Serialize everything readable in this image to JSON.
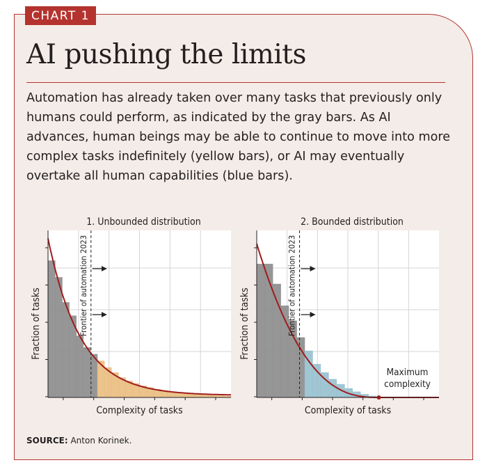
{
  "badge": "CHART 1",
  "title": "AI pushing the limits",
  "description": "Automation has already taken over many tasks that previously only humans could perform, as indicated by the gray bars. As AI advances, human beings may be able to continue to move into more complex tasks indefinitely (yellow bars), or AI may eventually overtake all human capabilities (blue bars).",
  "source_label": "SOURCE:",
  "source_text": "Anton Korinek.",
  "colors": {
    "accent": "#b5332e",
    "automated": "#8d8d8d",
    "unbounded": "#e8b877",
    "bounded": "#8fbccb",
    "curve": "#a01c1c",
    "background": "#f4ece8"
  },
  "chart_data": [
    {
      "type": "bar",
      "title": "1. Unbounded distribution",
      "xlabel": "Complexity of tasks",
      "ylabel": "Fraction of tasks",
      "frontier_label": "Frontier of automation 2023",
      "frontier_x": 0.235,
      "xlim": [
        0,
        1
      ],
      "ylim": [
        0,
        1
      ],
      "grid": true,
      "bars": [
        0.82,
        0.72,
        0.57,
        0.49,
        0.37,
        0.3,
        0.26,
        0.22,
        0.18,
        0.15,
        0.12,
        0.1,
        0.085,
        0.07,
        0.06,
        0.05,
        0.042,
        0.035,
        0.03,
        0.025,
        0.021,
        0.018,
        0.015,
        0.013,
        0.011,
        0.009
      ],
      "curve": "exponential decay, unbounded tail",
      "annotation": ""
    },
    {
      "type": "bar",
      "title": "2. Bounded distribution",
      "xlabel": "Complexity of tasks",
      "ylabel": "Fraction of tasks",
      "frontier_label": "Frontier of automation 2023",
      "frontier_x": 0.235,
      "xlim": [
        0,
        1
      ],
      "ylim": [
        0,
        1
      ],
      "grid": true,
      "bars": [
        0.8,
        0.8,
        0.68,
        0.55,
        0.46,
        0.36,
        0.28,
        0.2,
        0.15,
        0.11,
        0.08,
        0.055,
        0.035,
        0.02,
        0.01,
        0.004
      ],
      "curve": "decays to zero at maximum complexity",
      "max_complexity_x": 0.67,
      "annotation": "Maximum complexity"
    }
  ]
}
